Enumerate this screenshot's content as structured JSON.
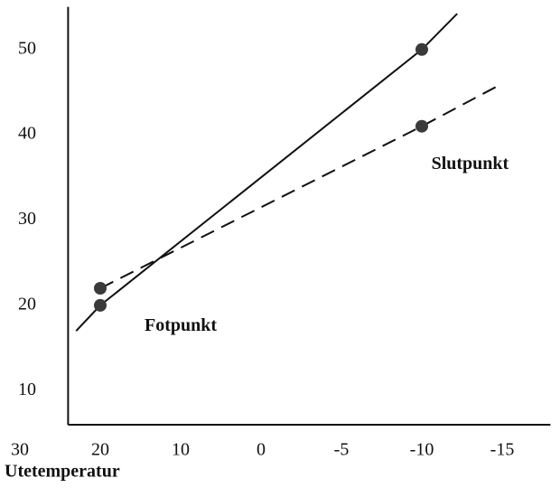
{
  "chart_data": {
    "type": "line",
    "xlabel": "Utetemperatur",
    "xlim": [
      24,
      -18
    ],
    "ylim": [
      6,
      55
    ],
    "xticks": [
      30,
      20,
      10,
      0,
      -5,
      -10,
      -15
    ],
    "yticks": [
      10,
      20,
      30,
      40,
      50
    ],
    "grid": false,
    "series": [
      {
        "dash": false,
        "color": "#111111",
        "x": [
          23,
          20,
          -10,
          -12.2
        ],
        "values": [
          17,
          20,
          50,
          54.2
        ]
      },
      {
        "dash": true,
        "color": "#111111",
        "x": [
          20,
          -10,
          -15
        ],
        "values": [
          22,
          41,
          46
        ]
      }
    ],
    "points": {
      "color": "#3a3a3a",
      "x": [
        20,
        20,
        -10,
        -10
      ],
      "values": [
        20,
        22,
        50,
        41
      ]
    },
    "annotations": [
      {
        "text": "Fotpunkt",
        "x": 10,
        "y": 17.5
      },
      {
        "text": "Slutpunkt",
        "x": -13,
        "y": 36.5
      }
    ]
  }
}
